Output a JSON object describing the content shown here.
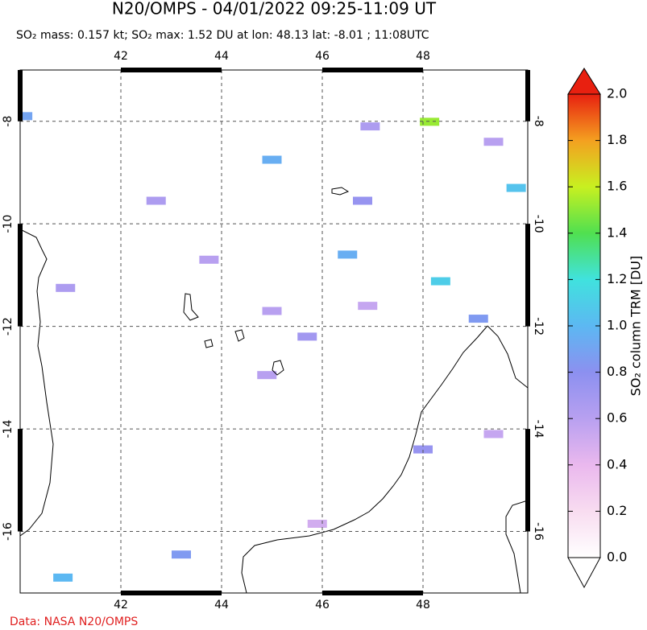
{
  "chart_data": {
    "type": "map",
    "title": "N20/OMPS - 04/01/2022 09:25-11:09 UT",
    "subtitle": "SO₂ mass: 0.157 kt; SO₂ max: 1.52 DU at lon: 48.13 lat: -8.01 ; 11:08UTC",
    "xlim": [
      40,
      50.08
    ],
    "ylim": [
      -17.2,
      -7
    ],
    "xticks": [
      42,
      44,
      46,
      48
    ],
    "yticks": [
      -8,
      -10,
      -12,
      -14,
      -16
    ],
    "grid": true,
    "lon": [
      48.13,
      48.35,
      49.85,
      49.1,
      46.5,
      45.0,
      40.85,
      40.05,
      43.2,
      46.8,
      46.95,
      49.4,
      45.7,
      44.9,
      43.75,
      42.7,
      48.0,
      49.4,
      40.9,
      45.0,
      46.9,
      45.9
    ],
    "lat": [
      -8.01,
      -11.12,
      -9.3,
      -11.85,
      -10.6,
      -8.75,
      -16.9,
      -7.9,
      -16.45,
      -9.55,
      -8.1,
      -8.4,
      -12.2,
      -12.95,
      -10.7,
      -9.55,
      -14.4,
      -14.1,
      -11.25,
      -11.7,
      -11.6,
      -15.85
    ],
    "values": [
      1.52,
      1.1,
      1.05,
      0.85,
      0.95,
      0.95,
      1.0,
      0.9,
      0.85,
      0.75,
      0.65,
      0.6,
      0.7,
      0.6,
      0.6,
      0.65,
      0.75,
      0.55,
      0.65,
      0.6,
      0.55,
      0.5
    ],
    "colorbar": {
      "label": "SO₂ column TRM [DU]",
      "lim": [
        0,
        2
      ],
      "ticks": [
        {
          "value": 0,
          "label": "0.0"
        },
        0.2,
        0.4,
        0.6,
        0.8,
        {
          "value": 1,
          "label": "1.0"
        },
        1.2,
        1.4,
        1.6,
        1.8,
        {
          "value": 2,
          "label": "2.0"
        }
      ],
      "colors": [
        "#ffffff",
        "#f8dcf0",
        "#eab8ee",
        "#b8a0f0",
        "#8c90f0",
        "#5cb8f2",
        "#40e2de",
        "#50e050",
        "#c8f020",
        "#f4a020",
        "#e82010"
      ]
    }
  },
  "footer": "Data: NASA N20/OMPS"
}
